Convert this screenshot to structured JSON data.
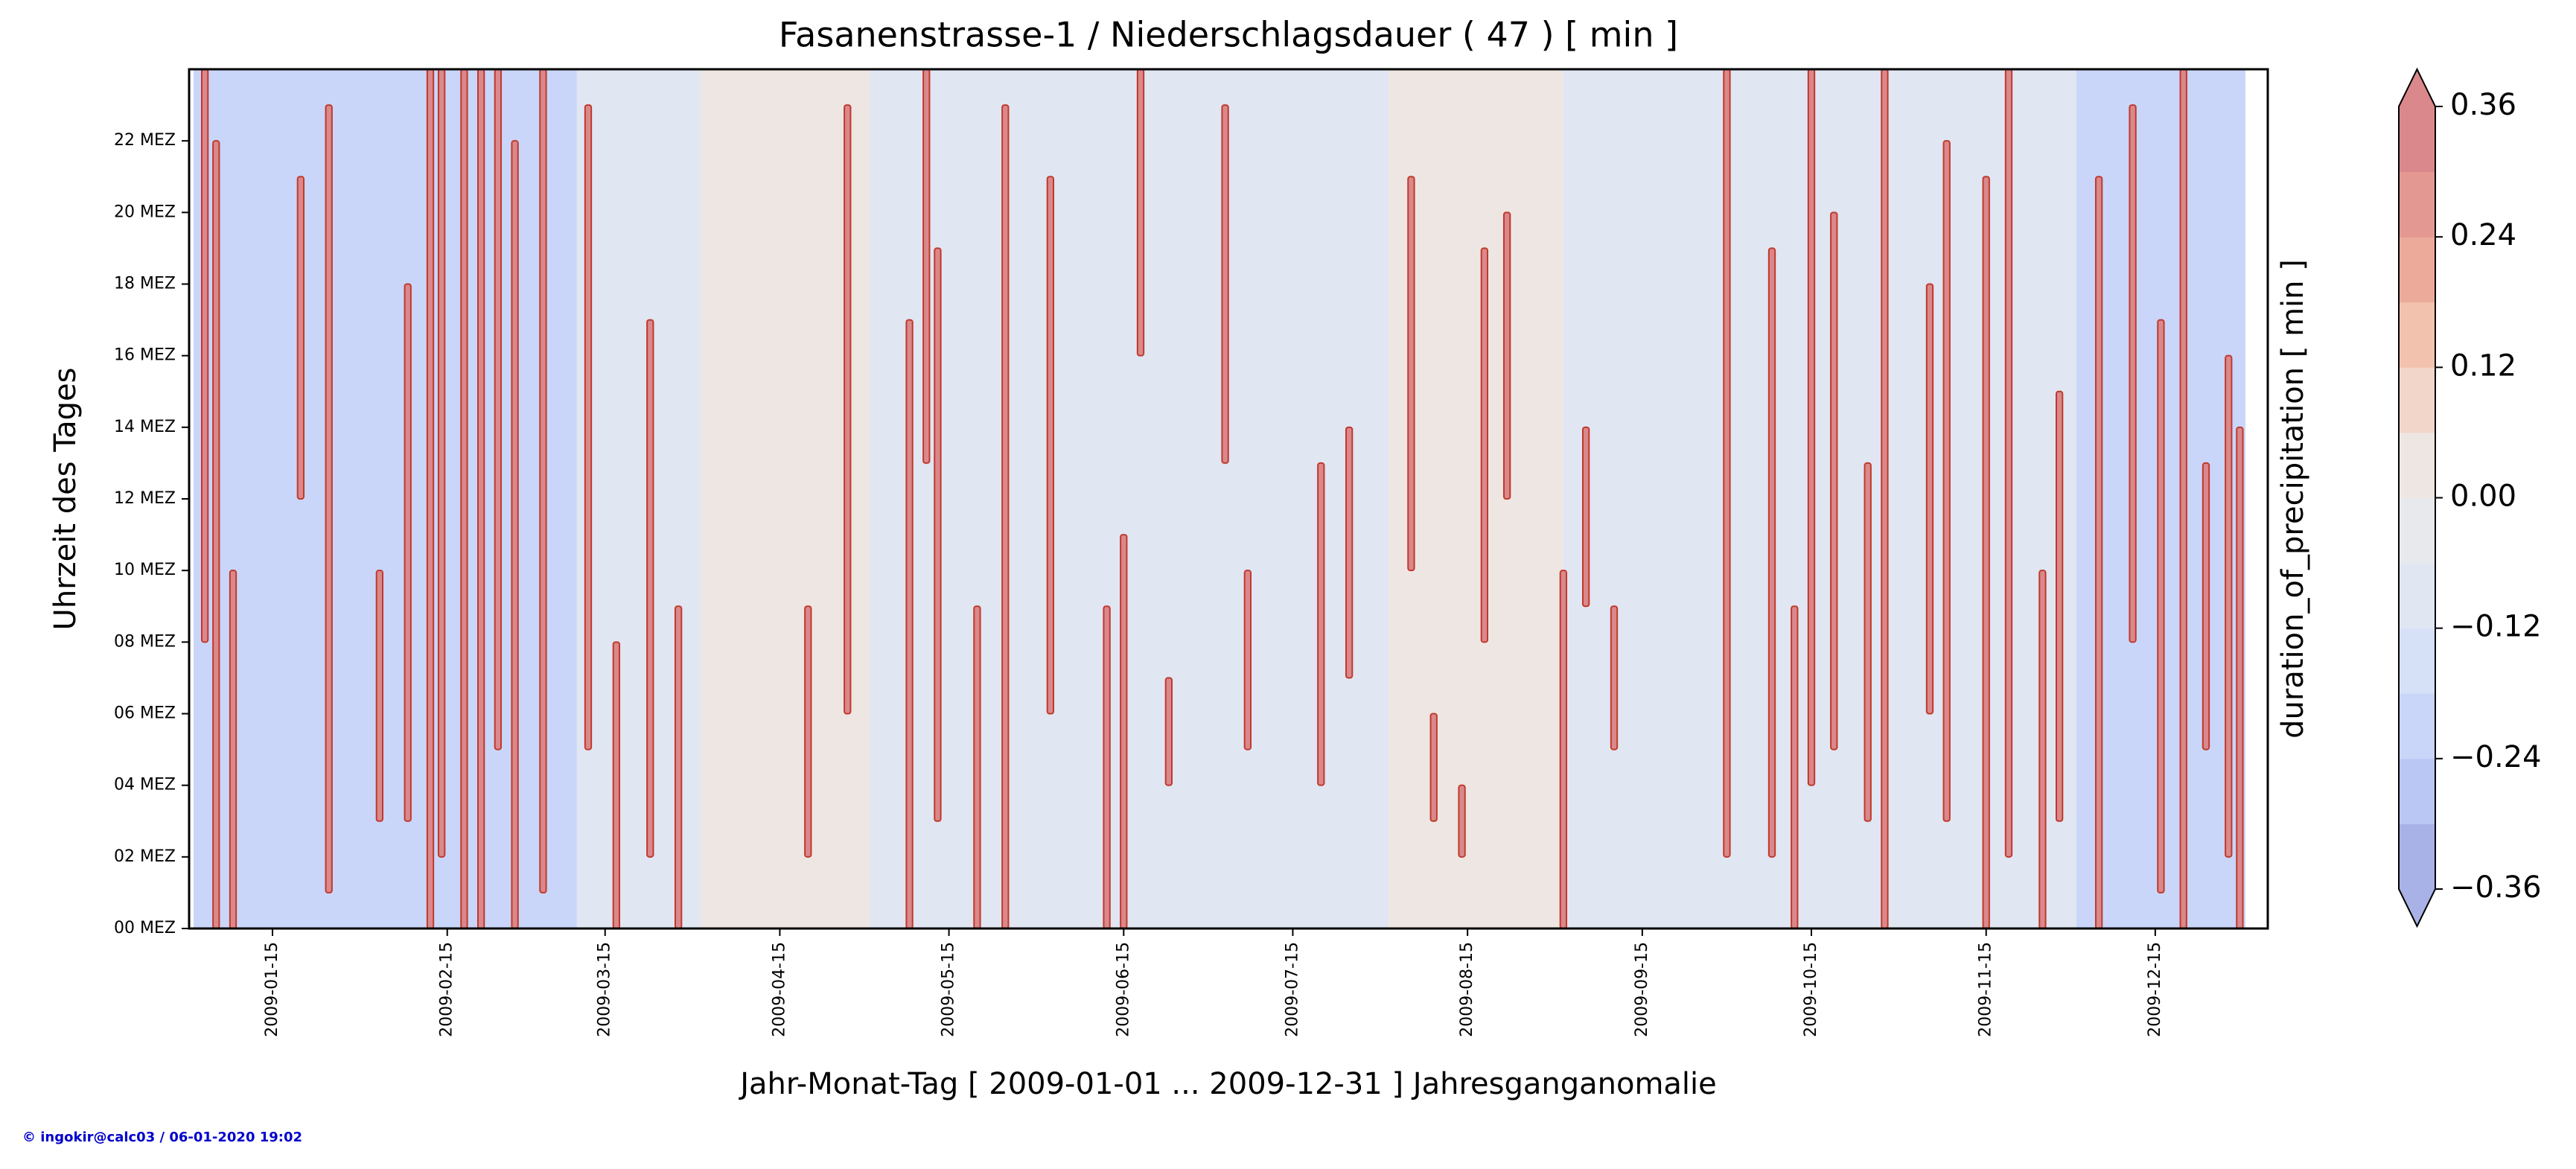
{
  "chart_data": {
    "type": "heatmap",
    "title": "Fasanenstrasse-1 / Niederschlagsdauer ( 47 ) [ min ]",
    "xlabel": "Jahr-Monat-Tag [ 2009-01-01 ... 2009-12-31 ] Jahresganganomalie",
    "ylabel": "Uhrzeit des Tages",
    "footer": "© ingokir@calc03 / 06-01-2020 19:02",
    "xlim": [
      "2009-01-01",
      "2009-12-31"
    ],
    "xticks": [
      "2009-01-15",
      "2009-02-15",
      "2009-03-15",
      "2009-04-15",
      "2009-05-15",
      "2009-06-15",
      "2009-07-15",
      "2009-08-15",
      "2009-09-15",
      "2009-10-15",
      "2009-11-15",
      "2009-12-15"
    ],
    "ylim": [
      0,
      24
    ],
    "yticks": [
      {
        "value": 0,
        "label": "00 MEZ"
      },
      {
        "value": 2,
        "label": "02 MEZ"
      },
      {
        "value": 4,
        "label": "04 MEZ"
      },
      {
        "value": 6,
        "label": "06 MEZ"
      },
      {
        "value": 8,
        "label": "08 MEZ"
      },
      {
        "value": 10,
        "label": "10 MEZ"
      },
      {
        "value": 12,
        "label": "12 MEZ"
      },
      {
        "value": 14,
        "label": "14 MEZ"
      },
      {
        "value": 16,
        "label": "16 MEZ"
      },
      {
        "value": 18,
        "label": "18 MEZ"
      },
      {
        "value": 20,
        "label": "20 MEZ"
      },
      {
        "value": 22,
        "label": "22 MEZ"
      }
    ],
    "bands": {
      "start": [
        "2009-01-01",
        "2009-03-10",
        "2009-04-01",
        "2009-05-01",
        "2009-08-01",
        "2009-09-01",
        "2009-12-01"
      ],
      "end": [
        "2009-03-10",
        "2009-04-01",
        "2009-05-01",
        "2009-08-01",
        "2009-09-01",
        "2009-12-01",
        "2009-12-31"
      ],
      "values": [
        -0.24,
        -0.12,
        0.0,
        -0.12,
        0.0,
        -0.12,
        -0.24
      ]
    },
    "events": {
      "value": 0.36,
      "x": [
        "2009-01-03",
        "2009-01-05",
        "2009-01-08",
        "2009-01-20",
        "2009-01-25",
        "2009-02-03",
        "2009-02-08",
        "2009-02-12",
        "2009-02-14",
        "2009-02-18",
        "2009-02-21",
        "2009-02-24",
        "2009-02-27",
        "2009-03-04",
        "2009-03-12",
        "2009-03-17",
        "2009-03-23",
        "2009-03-28",
        "2009-04-20",
        "2009-04-27",
        "2009-05-08",
        "2009-05-11",
        "2009-05-13",
        "2009-05-20",
        "2009-05-25",
        "2009-06-02",
        "2009-06-12",
        "2009-06-15",
        "2009-06-18",
        "2009-06-23",
        "2009-07-03",
        "2009-07-07",
        "2009-07-20",
        "2009-07-25",
        "2009-08-05",
        "2009-08-09",
        "2009-08-14",
        "2009-08-18",
        "2009-08-22",
        "2009-09-01",
        "2009-09-05",
        "2009-09-10",
        "2009-09-30",
        "2009-10-08",
        "2009-10-12",
        "2009-10-15",
        "2009-10-19",
        "2009-10-25",
        "2009-10-28",
        "2009-11-05",
        "2009-11-08",
        "2009-11-15",
        "2009-11-19",
        "2009-11-25",
        "2009-11-28",
        "2009-12-05",
        "2009-12-11",
        "2009-12-16",
        "2009-12-20",
        "2009-12-24",
        "2009-12-28",
        "2009-12-30"
      ],
      "start": [
        8,
        0,
        0,
        12,
        1,
        3,
        3,
        0,
        2,
        0,
        0,
        5,
        0,
        1,
        5,
        0,
        2,
        0,
        2,
        6,
        0,
        13,
        3,
        0,
        0,
        6,
        0,
        0,
        16,
        4,
        13,
        5,
        4,
        7,
        10,
        3,
        2,
        8,
        12,
        0,
        9,
        5,
        2,
        2,
        0,
        4,
        5,
        3,
        0,
        6,
        3,
        0,
        2,
        0,
        3,
        0,
        8,
        1,
        0,
        5,
        2,
        0
      ],
      "end": [
        24,
        22,
        10,
        21,
        23,
        10,
        18,
        24,
        24,
        24,
        24,
        24,
        22,
        24,
        23,
        8,
        17,
        9,
        9,
        23,
        17,
        24,
        19,
        9,
        23,
        21,
        9,
        11,
        24,
        7,
        23,
        10,
        13,
        14,
        21,
        6,
        4,
        19,
        20,
        10,
        14,
        9,
        24,
        19,
        9,
        24,
        20,
        13,
        24,
        18,
        22,
        21,
        24,
        10,
        15,
        21,
        23,
        17,
        24,
        13,
        16,
        14
      ]
    },
    "colorbar": {
      "label": "duration_of_precipitation [ min ]",
      "levels": [
        -0.36,
        -0.3,
        -0.24,
        -0.18,
        -0.12,
        -0.06,
        0.0,
        0.06,
        0.12,
        0.18,
        0.24,
        0.3,
        0.36
      ],
      "colors": [
        "#a9b2e6",
        "#bac6f3",
        "#c9d6fa",
        "#d6e1f8",
        "#e0e6f2",
        "#e8e9ec",
        "#eee6e2",
        "#f3d6ca",
        "#f2c2ae",
        "#ecab9a",
        "#e39892",
        "#da888c"
      ],
      "ticks": [
        {
          "value": -0.36,
          "label": "−0.36"
        },
        {
          "value": -0.24,
          "label": "−0.24"
        },
        {
          "value": -0.12,
          "label": "−0.12"
        },
        {
          "value": 0.0,
          "label": "0.00"
        },
        {
          "value": 0.12,
          "label": "0.12"
        },
        {
          "value": 0.24,
          "label": "0.24"
        },
        {
          "value": 0.36,
          "label": "0.36"
        }
      ]
    }
  }
}
